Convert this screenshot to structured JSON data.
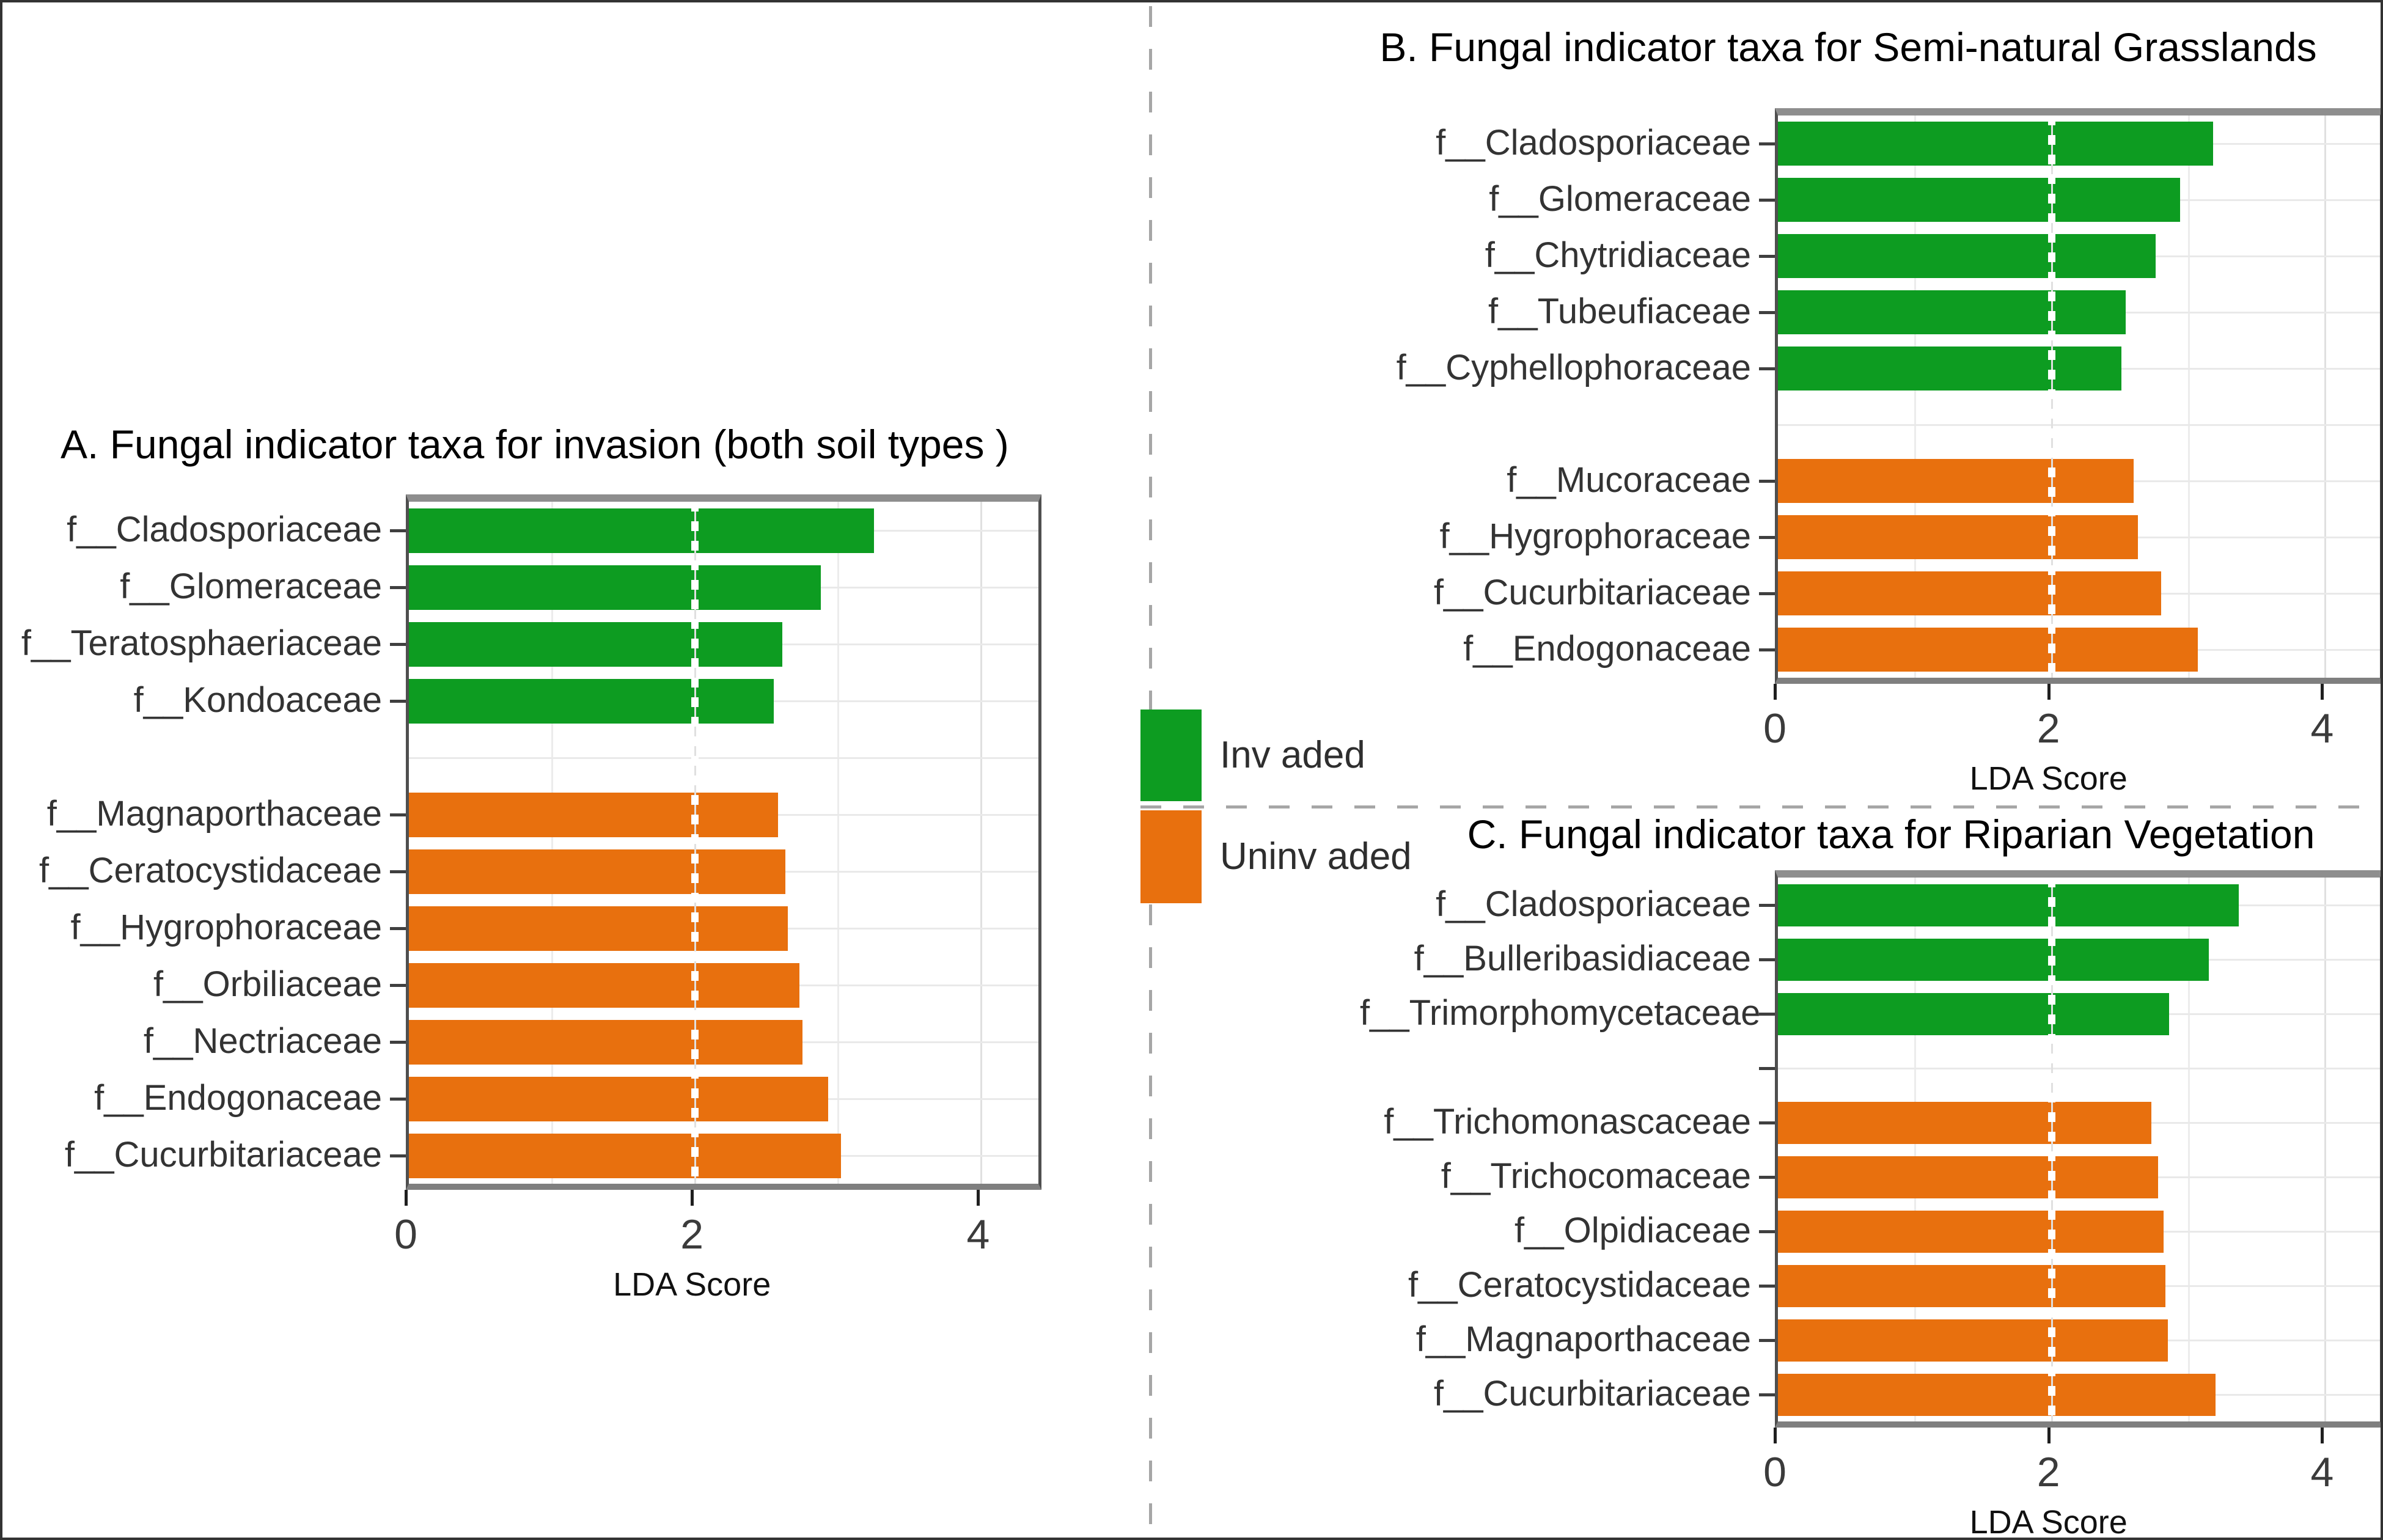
{
  "legend": {
    "items": [
      {
        "label": "Inv aded",
        "group": "invaded"
      },
      {
        "label": "Uninv aded",
        "group": "uninvaded"
      }
    ]
  },
  "colors": {
    "invaded": "#0d9c21",
    "uninvaded": "#e8700e",
    "grid": "#e9e9e9",
    "ref_line": "#ffffff",
    "separator": "#a6a6a6",
    "axis_text": "#3b3b3b",
    "category_text": "#333333",
    "title_text": "#000000",
    "background": "#ffffff"
  },
  "axis": {
    "label": "LDA Score",
    "tick_labels": [
      "0",
      "2",
      "4"
    ],
    "tick_values": [
      0,
      2,
      4
    ],
    "xmax": 4.4,
    "ref_value": 2
  },
  "chart_data": [
    {
      "id": "A",
      "type": "bar",
      "orientation": "horizontal",
      "title": "A. Fungal indicator taxa for invasion (both soil types )",
      "xlabel": "LDA Score",
      "xlim": [
        0,
        4.4
      ],
      "xticks": [
        0,
        2,
        4
      ],
      "ref_line_x": 2,
      "grid": true,
      "rows": [
        {
          "label": "f__Cladosporiaceae",
          "value": 3.25,
          "group": "invaded"
        },
        {
          "label": "f__Glomeraceae",
          "value": 2.88,
          "group": "invaded"
        },
        {
          "label": "f__Teratosphaeriaceae",
          "value": 2.61,
          "group": "invaded"
        },
        {
          "label": "f__Kondoaceae",
          "value": 2.55,
          "group": "invaded"
        },
        {
          "label": "",
          "value": null,
          "group": "gap",
          "tick": false
        },
        {
          "label": "f__Magnaporthaceae",
          "value": 2.58,
          "group": "uninvaded"
        },
        {
          "label": "f__Ceratocystidaceae",
          "value": 2.63,
          "group": "uninvaded"
        },
        {
          "label": "f__Hygrophoraceae",
          "value": 2.65,
          "group": "uninvaded"
        },
        {
          "label": "f__Orbiliaceae",
          "value": 2.73,
          "group": "uninvaded"
        },
        {
          "label": "f__Nectriaceae",
          "value": 2.75,
          "group": "uninvaded"
        },
        {
          "label": "f__Endogonaceae",
          "value": 2.93,
          "group": "uninvaded"
        },
        {
          "label": "f__Cucurbitariaceae",
          "value": 3.02,
          "group": "uninvaded"
        }
      ]
    },
    {
      "id": "B",
      "type": "bar",
      "orientation": "horizontal",
      "title": "B. Fungal indicator taxa for Semi-natural Grasslands",
      "xlabel": "LDA Score",
      "xlim": [
        0,
        4.4
      ],
      "xticks": [
        0,
        2,
        4
      ],
      "ref_line_x": 2,
      "grid": true,
      "rows": [
        {
          "label": "f__Cladosporiaceae",
          "value": 3.18,
          "group": "invaded"
        },
        {
          "label": "f__Glomeraceae",
          "value": 2.94,
          "group": "invaded"
        },
        {
          "label": "f__Chytridiaceae",
          "value": 2.76,
          "group": "invaded"
        },
        {
          "label": "f__Tubeufiaceae",
          "value": 2.54,
          "group": "invaded"
        },
        {
          "label": "f__Cyphellophoraceae",
          "value": 2.51,
          "group": "invaded"
        },
        {
          "label": "",
          "value": null,
          "group": "gap",
          "tick": false
        },
        {
          "label": "f__Mucoraceae",
          "value": 2.6,
          "group": "uninvaded"
        },
        {
          "label": "f__Hygrophoraceae",
          "value": 2.63,
          "group": "uninvaded"
        },
        {
          "label": "f__Cucurbitariaceae",
          "value": 2.8,
          "group": "uninvaded"
        },
        {
          "label": "f__Endogonaceae",
          "value": 3.07,
          "group": "uninvaded"
        }
      ]
    },
    {
      "id": "C",
      "type": "bar",
      "orientation": "horizontal",
      "title": "C. Fungal indicator taxa for Riparian Vegetation",
      "xlabel": "LDA Score",
      "xlim": [
        0,
        4.4
      ],
      "xticks": [
        0,
        2,
        4
      ],
      "ref_line_x": 2,
      "grid": true,
      "rows": [
        {
          "label": "f__Cladosporiaceae",
          "value": 3.37,
          "group": "invaded"
        },
        {
          "label": "f__Bulleribasidiaceae",
          "value": 3.15,
          "group": "invaded"
        },
        {
          "label": "f__Trimorphomycetaceae",
          "value": 2.86,
          "group": "invaded"
        },
        {
          "label": "",
          "value": null,
          "group": "gap",
          "tick": true
        },
        {
          "label": "f__Trichomonascaceae",
          "value": 2.73,
          "group": "uninvaded"
        },
        {
          "label": "f__Trichocomaceae",
          "value": 2.78,
          "group": "uninvaded"
        },
        {
          "label": "f__Olpidiaceae",
          "value": 2.82,
          "group": "uninvaded"
        },
        {
          "label": "f__Ceratocystidaceae",
          "value": 2.83,
          "group": "uninvaded"
        },
        {
          "label": "f__Magnaporthaceae",
          "value": 2.85,
          "group": "uninvaded"
        },
        {
          "label": "f__Cucurbitariaceae",
          "value": 3.2,
          "group": "uninvaded"
        }
      ]
    }
  ]
}
